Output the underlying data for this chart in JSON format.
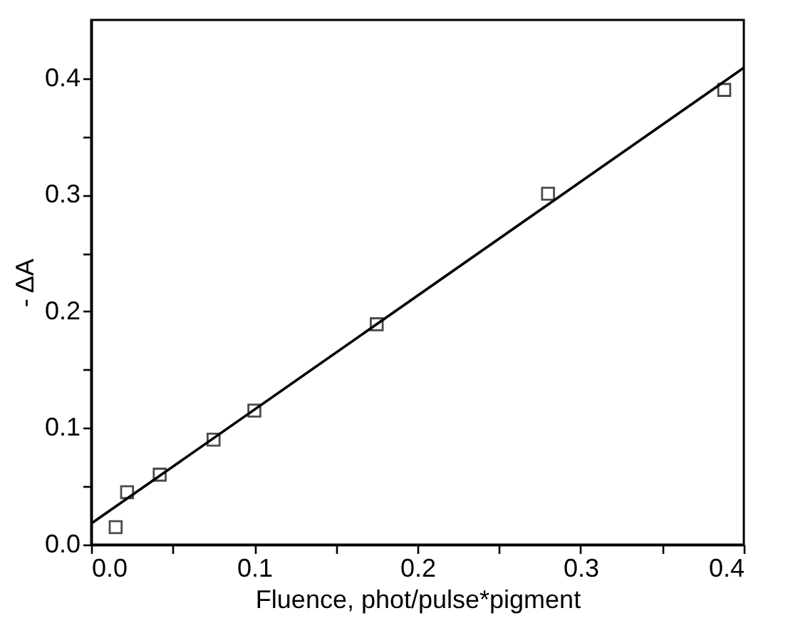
{
  "chart_data": {
    "type": "scatter",
    "xlabel": "Fluence,  phot/pulse*pigment",
    "ylabel": "- ΔA",
    "xlim": [
      0,
      0.4
    ],
    "ylim": [
      0,
      0.45
    ],
    "xticks": [
      {
        "value": 0,
        "label": "0.0"
      },
      {
        "value": 0.05,
        "label": null
      },
      0.1,
      {
        "value": 0.15,
        "label": null
      },
      0.2,
      {
        "value": 0.25,
        "label": null
      },
      0.3,
      {
        "value": 0.35,
        "label": null
      },
      0.4
    ],
    "yticks": [
      {
        "value": 0,
        "label": "0.0"
      },
      {
        "value": 0.05,
        "label": null
      },
      0.1,
      {
        "value": 0.15,
        "label": null
      },
      0.2,
      {
        "value": 0.25,
        "label": null
      },
      0.3,
      {
        "value": 0.35,
        "label": null
      },
      0.4
    ],
    "series": [
      {
        "color": "#000000",
        "marker": "square",
        "x": [
          0.015,
          0.022,
          0.042,
          0.075,
          0.1,
          0.175,
          0.28,
          0.388
        ],
        "values": [
          0.015,
          0.045,
          0.06,
          0.09,
          0.115,
          0.189,
          0.301,
          0.39
        ]
      },
      {
        "type": "line",
        "marker": "none",
        "color": "#000000",
        "x": [
          0,
          0.4
        ],
        "values": [
          0.018,
          0.409
        ]
      }
    ]
  }
}
